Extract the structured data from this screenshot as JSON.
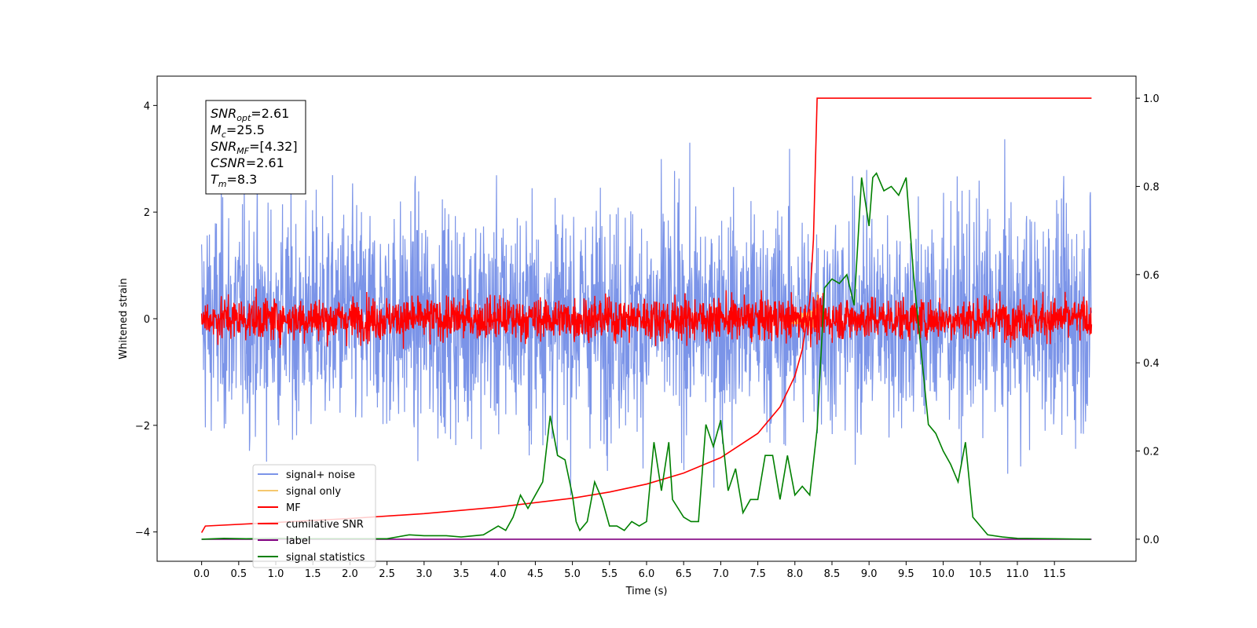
{
  "chart_data": {
    "type": "line",
    "xlabel": "Time (s)",
    "ylabel": "Whitened strain",
    "xlim": [
      -0.6,
      12.6
    ],
    "ylim": [
      -4.55,
      4.55
    ],
    "y2lim": [
      -0.05,
      1.05
    ],
    "xticks": [
      "0.0",
      "0.5",
      "1.0",
      "1.5",
      "2.0",
      "2.5",
      "3.0",
      "3.5",
      "4.0",
      "4.5",
      "5.0",
      "5.5",
      "6.0",
      "6.5",
      "7.0",
      "7.5",
      "8.0",
      "8.5",
      "9.0",
      "9.5",
      "10.0",
      "10.5",
      "11.0",
      "11.5"
    ],
    "yticks": [
      "4",
      "2",
      "0",
      "−2",
      "−4"
    ],
    "y2ticks": [
      "1.0",
      "0.8",
      "0.6",
      "0.4",
      "0.2",
      "0.0"
    ],
    "info_box": [
      {
        "sym": "SNR",
        "sub": "opt",
        "value": "=2.61"
      },
      {
        "sym": "M",
        "sub": "c",
        "value": "=25.5"
      },
      {
        "sym": "SNR",
        "sub": "MF",
        "value": "=[4.32]"
      },
      {
        "sym": "CSNR",
        "sub": "",
        "value": "=2.61"
      },
      {
        "sym": "T",
        "sub": "m",
        "value": "=8.3"
      }
    ],
    "series": [
      {
        "name": "signal+ noise",
        "color": "#7b94e8",
        "axis": "left",
        "noise_std": 1.05,
        "range": [
          0.0,
          12.0
        ]
      },
      {
        "name": "signal only",
        "color": "#f5c86e",
        "axis": "left",
        "merger_time": 8.3
      },
      {
        "name": "MF",
        "color": "#ff0000",
        "axis": "left",
        "noise_std": 0.2,
        "range": [
          0.0,
          12.0
        ]
      },
      {
        "name": "cumilative SNR",
        "color": "#ff0000",
        "axis": "right",
        "x": [
          0.0,
          0.05,
          1.0,
          2.0,
          3.0,
          4.0,
          5.0,
          5.5,
          6.0,
          6.5,
          7.0,
          7.5,
          7.8,
          8.0,
          8.1,
          8.2,
          8.25,
          8.3,
          8.35,
          12.0
        ],
        "y": [
          0.015,
          0.03,
          0.038,
          0.047,
          0.058,
          0.073,
          0.093,
          0.107,
          0.125,
          0.15,
          0.185,
          0.24,
          0.3,
          0.37,
          0.43,
          0.54,
          0.68,
          1.0,
          1.0,
          1.0
        ]
      },
      {
        "name": "label",
        "color": "#800080",
        "axis": "right",
        "x": [
          0.0,
          12.0
        ],
        "y": [
          0.0,
          0.0
        ]
      },
      {
        "name": "signal statistics",
        "color": "#008000",
        "axis": "right",
        "x": [
          0.0,
          0.3,
          0.6,
          1.0,
          1.5,
          2.0,
          2.5,
          2.8,
          3.0,
          3.3,
          3.5,
          3.8,
          4.0,
          4.1,
          4.2,
          4.3,
          4.4,
          4.5,
          4.6,
          4.7,
          4.8,
          4.9,
          5.0,
          5.05,
          5.1,
          5.2,
          5.3,
          5.4,
          5.5,
          5.6,
          5.7,
          5.8,
          5.9,
          6.0,
          6.1,
          6.2,
          6.3,
          6.35,
          6.5,
          6.6,
          6.7,
          6.8,
          6.9,
          7.0,
          7.1,
          7.2,
          7.3,
          7.4,
          7.5,
          7.6,
          7.7,
          7.8,
          7.9,
          8.0,
          8.1,
          8.2,
          8.3,
          8.4,
          8.5,
          8.6,
          8.7,
          8.8,
          8.9,
          9.0,
          9.05,
          9.1,
          9.2,
          9.3,
          9.4,
          9.5,
          9.6,
          9.7,
          9.8,
          9.9,
          10.0,
          10.1,
          10.2,
          10.3,
          10.4,
          10.5,
          10.6,
          10.8,
          11.0,
          11.5,
          11.99
        ],
        "y": [
          0.0,
          0.002,
          0.001,
          0.002,
          0.001,
          0.001,
          0.001,
          0.01,
          0.008,
          0.008,
          0.005,
          0.01,
          0.03,
          0.02,
          0.05,
          0.1,
          0.07,
          0.1,
          0.13,
          0.28,
          0.19,
          0.18,
          0.1,
          0.04,
          0.02,
          0.04,
          0.13,
          0.09,
          0.03,
          0.03,
          0.02,
          0.04,
          0.03,
          0.04,
          0.22,
          0.11,
          0.22,
          0.09,
          0.05,
          0.04,
          0.04,
          0.26,
          0.21,
          0.27,
          0.11,
          0.16,
          0.06,
          0.09,
          0.09,
          0.19,
          0.19,
          0.09,
          0.19,
          0.1,
          0.12,
          0.1,
          0.25,
          0.57,
          0.59,
          0.58,
          0.6,
          0.53,
          0.82,
          0.71,
          0.82,
          0.83,
          0.79,
          0.8,
          0.78,
          0.82,
          0.6,
          0.43,
          0.26,
          0.24,
          0.2,
          0.17,
          0.13,
          0.22,
          0.05,
          0.03,
          0.01,
          0.005,
          0.002,
          0.001,
          0.0
        ]
      }
    ],
    "legend": {
      "placement": "lower-left"
    }
  }
}
